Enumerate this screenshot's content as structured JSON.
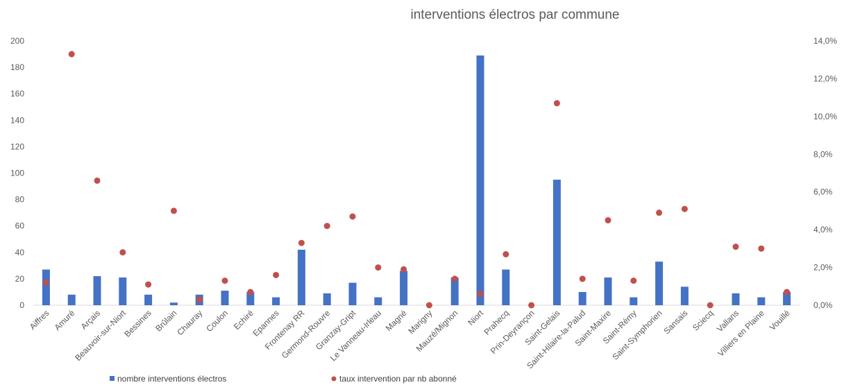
{
  "chart_data": {
    "type": "bar",
    "title": "interventions électros par commune",
    "categories": [
      "Aiffres",
      "Amuré",
      "Arçais",
      "Beauvoir-sur-Niort",
      "Bessines",
      "Brûlain",
      "Chauray",
      "Coulon",
      "Echiré",
      "Epannes",
      "Frontenay RR",
      "Germond-Rouvre",
      "Granzay-Gript",
      "Le Vanneau-Irleau",
      "Magné",
      "Marigny",
      "Mauzé/Mignon",
      "Niort",
      "Prahecq",
      "Prin-Deyrançon",
      "Saint-Gelais",
      "Saint-Hilaire-la-Palud",
      "Saint-Maxire",
      "Saint-Rémy",
      "Saint-Symphorien",
      "Sansais",
      "Sciecq",
      "Vallans",
      "Villiers en Plaine",
      "Vouillé"
    ],
    "series": [
      {
        "name": "nombre interventions électros",
        "type": "bar",
        "axis": "left",
        "color": "#4472C4",
        "values": [
          27,
          8,
          22,
          21,
          8,
          2,
          8,
          11,
          10,
          6,
          42,
          9,
          17,
          6,
          26,
          0,
          21,
          189,
          27,
          0,
          95,
          10,
          21,
          6,
          33,
          14,
          0,
          9,
          6,
          10
        ]
      },
      {
        "name": "taux intervention par nb abonné",
        "type": "scatter",
        "axis": "right",
        "color": "#C0504D",
        "values": [
          1.2,
          13.3,
          6.6,
          2.8,
          1.1,
          5.0,
          0.3,
          1.3,
          0.7,
          1.6,
          3.3,
          4.2,
          4.7,
          2.0,
          1.9,
          0.0,
          1.4,
          0.6,
          2.7,
          0.0,
          10.7,
          1.4,
          4.5,
          1.3,
          4.9,
          5.1,
          0.0,
          3.1,
          3.0,
          0.7
        ]
      }
    ],
    "y_left": {
      "ylim": [
        0,
        200
      ],
      "ticks": [
        "0",
        "20",
        "40",
        "60",
        "80",
        "100",
        "120",
        "140",
        "160",
        "180",
        "200"
      ]
    },
    "y_right": {
      "ylim": [
        0,
        14
      ],
      "ticks": [
        "0,0%",
        "2,0%",
        "4,0%",
        "6,0%",
        "8,0%",
        "10,0%",
        "12,0%",
        "14,0%"
      ]
    },
    "grid": false,
    "legend_position": "bottom"
  }
}
